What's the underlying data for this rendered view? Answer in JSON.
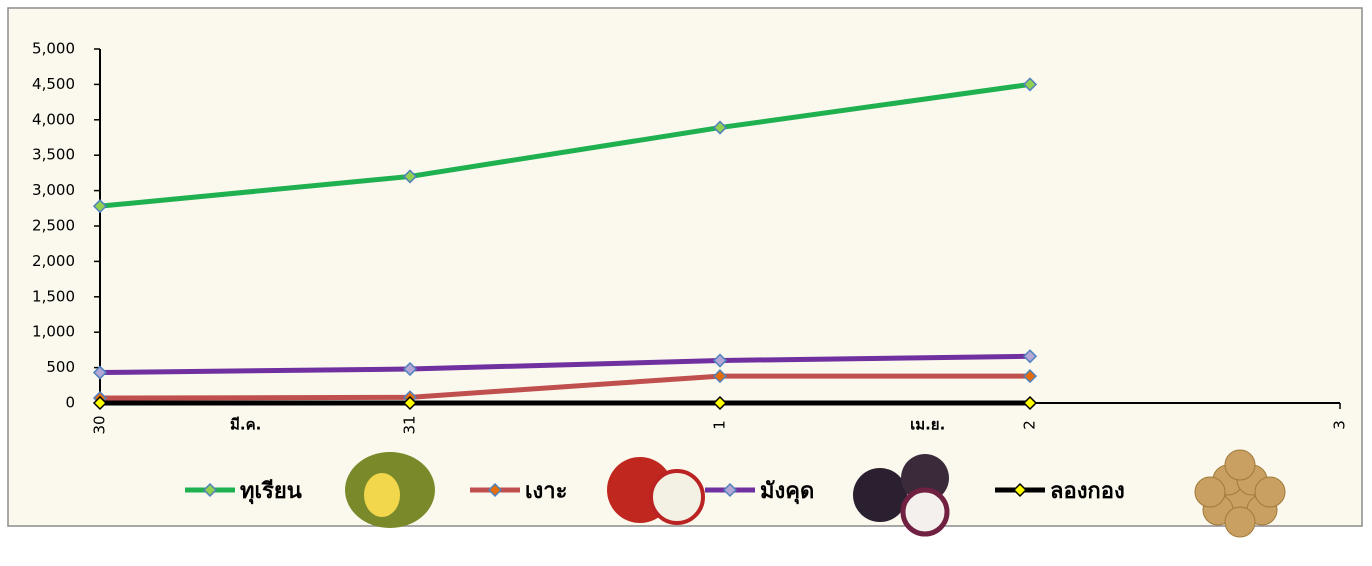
{
  "chart_data": {
    "type": "line",
    "categories": [
      "30",
      "31",
      "1",
      "2",
      "3"
    ],
    "x_groups": [
      "มี.ค.",
      "เม.ย."
    ],
    "series": [
      {
        "name": "ทุเรียน",
        "color": "#1fb14f",
        "marker_color": "#92d050",
        "values": [
          2780,
          3200,
          3890,
          4500,
          null
        ]
      },
      {
        "name": "เงาะ",
        "color": "#c0504d",
        "marker_color": "#e46c0a",
        "values": [
          70,
          80,
          380,
          380,
          null
        ]
      },
      {
        "name": "มังคุด",
        "color": "#7030a0",
        "marker_color": "#b4a7d6",
        "values": [
          430,
          480,
          600,
          660,
          null
        ]
      },
      {
        "name": "ลองกอง",
        "color": "#000000",
        "marker_color": "#ffff00",
        "values": [
          0,
          0,
          0,
          0,
          null
        ]
      }
    ],
    "ylim": [
      0,
      5000
    ],
    "yticks": [
      0,
      500,
      {
        "value": 1000,
        "label": "1,000"
      },
      {
        "value": 1500,
        "label": "1,500"
      },
      {
        "value": 2000,
        "label": "2,000"
      },
      {
        "value": 2500,
        "label": "2,500"
      },
      {
        "value": 3000,
        "label": "3,000"
      },
      {
        "value": 3500,
        "label": "3,500"
      },
      {
        "value": 4000,
        "label": "4,000"
      },
      {
        "value": 4500,
        "label": "4,500"
      },
      {
        "value": 5000,
        "label": "5,000"
      }
    ],
    "legend": "bottom"
  }
}
